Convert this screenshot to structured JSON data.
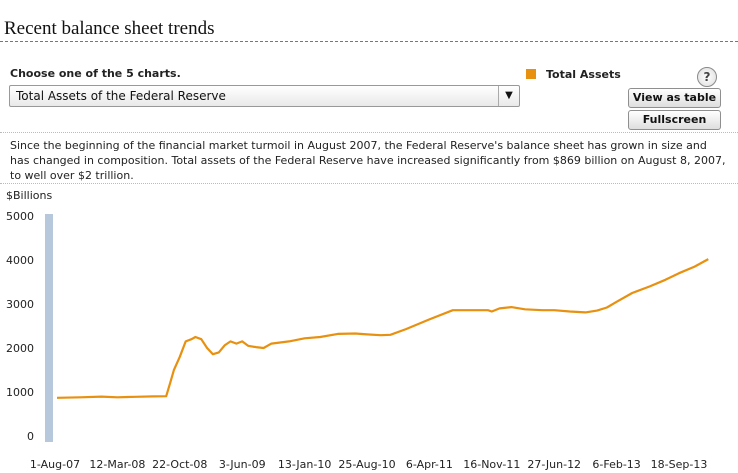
{
  "page": {
    "title": "Recent balance sheet trends",
    "choose_label": "Choose one of the 5 charts.",
    "selected_chart": "Total Assets of the Federal Reserve",
    "select_arrow": "▼",
    "help_label": "?",
    "buttons": {
      "view_table": "View as table",
      "fullscreen": "Fullscreen"
    },
    "description": "Since the beginning of the financial market turmoil in August 2007, the Federal Reserve's balance sheet has grown in size and has changed in composition. Total assets of the Federal Reserve have increased significantly from $869 billion on August 8, 2007, to well over $2 trillion."
  },
  "colors": {
    "series": "#e8900f",
    "axis_bar": "#b8c8dc"
  },
  "chart_data": {
    "type": "line",
    "ylabel": "$Billions",
    "ylim": [
      0,
      5000
    ],
    "y_ticks": [
      0,
      1000,
      2000,
      3000,
      4000,
      5000
    ],
    "x_tick_labels": [
      "1-Aug-07",
      "12-Mar-08",
      "22-Oct-08",
      "3-Jun-09",
      "13-Jan-10",
      "25-Aug-10",
      "6-Apr-11",
      "16-Nov-11",
      "27-Jun-12",
      "6-Feb-13",
      "18-Sep-13"
    ],
    "legend": {
      "position": "top",
      "entries": [
        "Total Assets"
      ]
    },
    "series": [
      {
        "name": "Total Assets",
        "points": [
          [
            "2007-08-08",
            869
          ],
          [
            "2007-11-01",
            880
          ],
          [
            "2008-01-15",
            895
          ],
          [
            "2008-03-12",
            880
          ],
          [
            "2008-05-15",
            890
          ],
          [
            "2008-07-20",
            900
          ],
          [
            "2008-09-03",
            905
          ],
          [
            "2008-09-17",
            1200
          ],
          [
            "2008-10-01",
            1500
          ],
          [
            "2008-10-22",
            1800
          ],
          [
            "2008-11-12",
            2150
          ],
          [
            "2008-12-03",
            2200
          ],
          [
            "2008-12-17",
            2250
          ],
          [
            "2009-01-07",
            2200
          ],
          [
            "2009-01-28",
            2000
          ],
          [
            "2009-02-18",
            1860
          ],
          [
            "2009-03-11",
            1900
          ],
          [
            "2009-04-01",
            2060
          ],
          [
            "2009-04-22",
            2150
          ],
          [
            "2009-05-13",
            2100
          ],
          [
            "2009-06-03",
            2150
          ],
          [
            "2009-06-24",
            2050
          ],
          [
            "2009-07-22",
            2020
          ],
          [
            "2009-08-19",
            2000
          ],
          [
            "2009-09-16",
            2100
          ],
          [
            "2009-11-18",
            2150
          ],
          [
            "2010-01-13",
            2220
          ],
          [
            "2010-03-10",
            2250
          ],
          [
            "2010-05-12",
            2320
          ],
          [
            "2010-07-14",
            2330
          ],
          [
            "2010-08-25",
            2310
          ],
          [
            "2010-10-13",
            2290
          ],
          [
            "2010-11-17",
            2300
          ],
          [
            "2011-01-12",
            2430
          ],
          [
            "2011-04-06",
            2650
          ],
          [
            "2011-06-29",
            2860
          ],
          [
            "2011-09-14",
            2860
          ],
          [
            "2011-11-02",
            2860
          ],
          [
            "2011-11-16",
            2830
          ],
          [
            "2011-12-14",
            2900
          ],
          [
            "2012-01-25",
            2930
          ],
          [
            "2012-03-14",
            2880
          ],
          [
            "2012-05-16",
            2860
          ],
          [
            "2012-06-27",
            2860
          ],
          [
            "2012-08-22",
            2830
          ],
          [
            "2012-10-17",
            2810
          ],
          [
            "2012-11-28",
            2850
          ],
          [
            "2013-01-02",
            2920
          ],
          [
            "2013-02-06",
            3050
          ],
          [
            "2013-04-03",
            3250
          ],
          [
            "2013-06-05",
            3400
          ],
          [
            "2013-07-31",
            3550
          ],
          [
            "2013-09-18",
            3700
          ],
          [
            "2013-11-13",
            3850
          ],
          [
            "2014-01-01",
            4020
          ]
        ]
      }
    ]
  }
}
